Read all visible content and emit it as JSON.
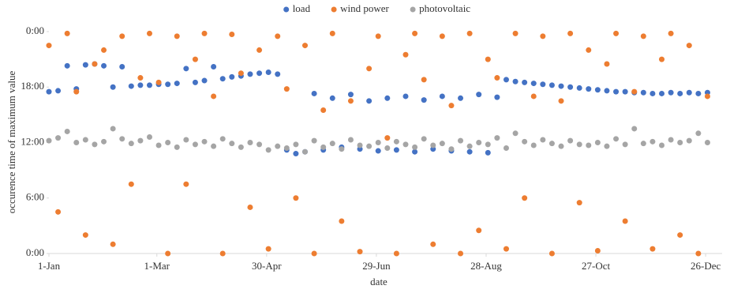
{
  "chart_data": {
    "type": "scatter",
    "xlabel": "date",
    "ylabel": "occurence time of maximum value",
    "x": [
      0,
      5,
      10,
      15,
      20,
      25,
      30,
      35,
      40,
      45,
      50,
      55,
      60,
      65,
      70,
      75,
      80,
      85,
      90,
      95,
      100,
      105,
      110,
      115,
      120,
      125,
      130,
      135,
      140,
      145,
      150,
      155,
      160,
      165,
      170,
      175,
      180,
      185,
      190,
      195,
      200,
      205,
      210,
      215,
      220,
      225,
      230,
      235,
      240,
      245,
      250,
      255,
      260,
      265,
      270,
      275,
      280,
      285,
      290,
      295,
      300,
      305,
      310,
      315,
      320,
      325,
      330,
      335,
      340,
      345,
      350,
      355,
      360
    ],
    "xlim": [
      0,
      368
    ],
    "xticks": [
      {
        "value": 0,
        "label": "1-Jan"
      },
      {
        "value": 59,
        "label": "1-Mar"
      },
      {
        "value": 119,
        "label": "30-Apr"
      },
      {
        "value": 179,
        "label": "29-Jun"
      },
      {
        "value": 239,
        "label": "28-Aug"
      },
      {
        "value": 299,
        "label": "27-Oct"
      },
      {
        "value": 359,
        "label": "26-Dec"
      }
    ],
    "ylim": [
      0,
      24
    ],
    "yticks": [
      {
        "value": 0,
        "label": "0:00"
      },
      {
        "value": 6,
        "label": "6:00"
      },
      {
        "value": 12,
        "label": "12:00"
      },
      {
        "value": 18,
        "label": "18:00"
      },
      {
        "value": 24,
        "label": "0:00"
      }
    ],
    "legend": "top",
    "series": [
      {
        "name": "load",
        "color": "#4472c4",
        "values": [
          17.5,
          17.6,
          20.3,
          17.8,
          20.4,
          20.5,
          20.3,
          18.0,
          20.2,
          18.1,
          18.2,
          18.2,
          18.3,
          18.3,
          18.4,
          20.0,
          18.5,
          18.7,
          20.2,
          18.9,
          19.1,
          19.2,
          19.4,
          19.5,
          19.6,
          19.4,
          11.2,
          10.8,
          11.0,
          17.3,
          11.2,
          16.8,
          11.5,
          17.2,
          11.3,
          16.5,
          11.1,
          16.8,
          11.2,
          17.0,
          11.0,
          16.6,
          11.3,
          17.0,
          11.1,
          16.8,
          11.0,
          17.2,
          10.9,
          16.9,
          18.8,
          18.6,
          18.5,
          18.4,
          18.3,
          18.2,
          18.1,
          18.0,
          17.9,
          17.8,
          17.7,
          17.6,
          17.5,
          17.5,
          17.4,
          17.4,
          17.3,
          17.3,
          17.4,
          17.3,
          17.4,
          17.3,
          17.4
        ]
      },
      {
        "name": "wind power",
        "color": "#ed7d31",
        "values": [
          22.5,
          4.5,
          23.8,
          17.5,
          2,
          20.5,
          22,
          1,
          23.5,
          7.5,
          19,
          23.8,
          18.5,
          0,
          23.5,
          7.5,
          21,
          23.8,
          17,
          0,
          23.7,
          19.5,
          5,
          22,
          0.5,
          23.5,
          17.8,
          6,
          22.5,
          0,
          15.5,
          23.8,
          3.5,
          16.5,
          0.2,
          20,
          23.5,
          12.5,
          0,
          21.5,
          23.8,
          18.8,
          1,
          23.5,
          16,
          0,
          23.8,
          2.5,
          21,
          19,
          0.5,
          23.8,
          6,
          17,
          23.5,
          0,
          16.5,
          23.8,
          5.5,
          22,
          0.3,
          20.5,
          23.8,
          3.5,
          17.5,
          23.5,
          0.5,
          21,
          23.8,
          2,
          22.5,
          0,
          17
        ]
      },
      {
        "name": "photovoltaic",
        "color": "#a5a5a5",
        "values": [
          12.2,
          12.5,
          13.2,
          12.0,
          12.3,
          11.8,
          12.1,
          13.5,
          12.4,
          11.9,
          12.2,
          12.6,
          11.7,
          12.0,
          11.5,
          12.3,
          11.8,
          12.1,
          11.6,
          12.4,
          11.9,
          11.5,
          12.0,
          11.8,
          11.2,
          11.6,
          11.4,
          11.8,
          11.0,
          12.2,
          11.5,
          11.9,
          11.3,
          12.3,
          11.7,
          11.6,
          12.0,
          11.4,
          12.1,
          11.8,
          11.5,
          12.4,
          11.7,
          11.9,
          11.3,
          12.2,
          11.6,
          12.0,
          11.8,
          12.5,
          11.4,
          13.0,
          12.1,
          11.7,
          12.3,
          11.9,
          11.6,
          12.2,
          11.8,
          11.7,
          12.0,
          11.6,
          12.4,
          11.8,
          13.5,
          11.9,
          12.1,
          11.7,
          12.3,
          12.0,
          12.2,
          13.0,
          12.0
        ]
      }
    ]
  }
}
